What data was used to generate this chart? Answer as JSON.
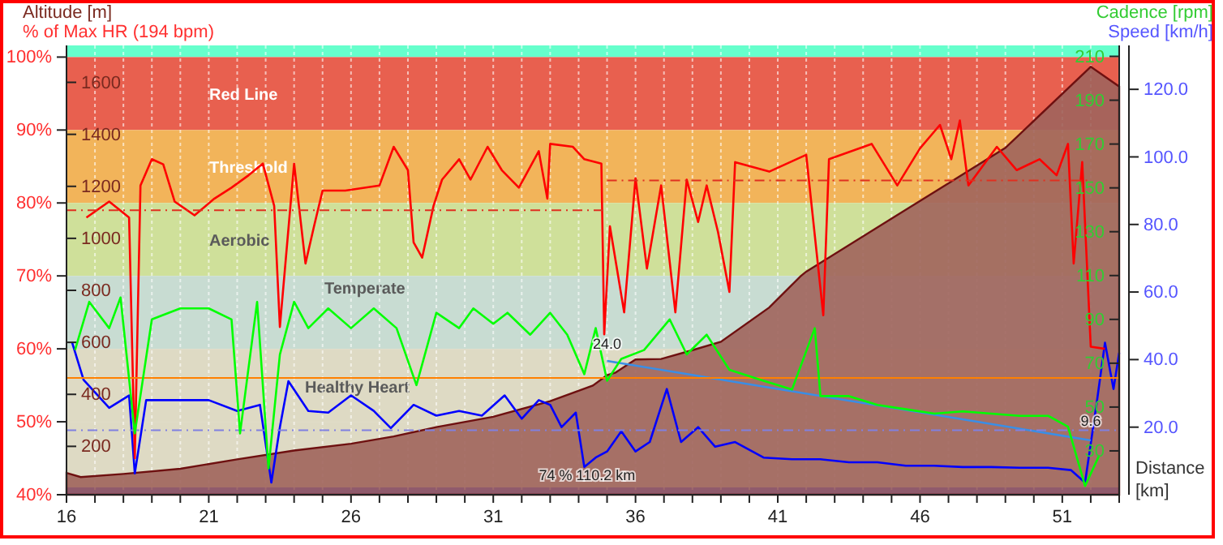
{
  "chart_data": [
    {
      "type": "line",
      "xlabel": "Distance [km]",
      "ylabel": "% of Max HR (194 bpm)",
      "y2label": "Speed [km/h]",
      "y3label": "Altitude [m]",
      "xlim": [
        16,
        53
      ],
      "xticks": [
        16,
        {
          "value": 17,
          "label": null
        },
        {
          "value": 18,
          "label": null
        },
        {
          "value": 19,
          "label": null
        },
        {
          "value": 20,
          "label": null
        },
        21,
        {
          "value": 22,
          "label": null
        },
        {
          "value": 23,
          "label": null
        },
        {
          "value": 24,
          "label": null
        },
        {
          "value": 25,
          "label": null
        },
        26,
        {
          "value": 27,
          "label": null
        },
        {
          "value": 28,
          "label": null
        },
        {
          "value": 29,
          "label": null
        },
        {
          "value": 30,
          "label": null
        },
        31,
        {
          "value": 32,
          "label": null
        },
        {
          "value": 33,
          "label": null
        },
        {
          "value": 34,
          "label": null
        },
        {
          "value": 35,
          "label": null
        },
        36,
        {
          "value": 37,
          "label": null
        },
        {
          "value": 38,
          "label": null
        },
        {
          "value": 39,
          "label": null
        },
        {
          "value": 40,
          "label": null
        },
        41,
        {
          "value": 42,
          "label": null
        },
        {
          "value": 43,
          "label": null
        },
        {
          "value": 44,
          "label": null
        },
        {
          "value": 45,
          "label": null
        },
        46,
        {
          "value": 47,
          "label": null
        },
        {
          "value": 48,
          "label": null
        },
        {
          "value": 49,
          "label": null
        },
        {
          "value": 50,
          "label": null
        },
        51,
        {
          "value": 52,
          "label": null
        },
        {
          "value": 53,
          "label": null
        }
      ],
      "ylim": [
        40,
        101.6
      ],
      "yticks": [
        {
          "value": 40,
          "label": "40%"
        },
        {
          "value": 50,
          "label": "50%"
        },
        {
          "value": 60,
          "label": "60%"
        },
        {
          "value": 70,
          "label": "70%"
        },
        {
          "value": 80,
          "label": "80%"
        },
        {
          "value": 90,
          "label": "90%"
        },
        {
          "value": 100,
          "label": "100%"
        }
      ],
      "y2lim": [
        0,
        133
      ],
      "y2ticks": [
        {
          "value": 20,
          "label": "20.0"
        },
        {
          "value": 40,
          "label": "40.0"
        },
        {
          "value": 60,
          "label": "60.0"
        },
        {
          "value": 80,
          "label": "80.0"
        },
        {
          "value": 100,
          "label": "100.0"
        },
        {
          "value": 120,
          "label": "120.0"
        }
      ],
      "y3lim": [
        14,
        1742
      ],
      "y3ticks": [
        200,
        400,
        600,
        800,
        1000,
        1200,
        1400,
        1600
      ],
      "grid": "x",
      "bands": [
        {
          "axis": "y",
          "from": 100,
          "to": 101.6,
          "label": null,
          "color": "#66ffcc"
        },
        {
          "axis": "y",
          "from": 90,
          "to": 100,
          "label": "Red Line",
          "color": "#e8604f"
        },
        {
          "axis": "y",
          "from": 80,
          "to": 90,
          "label": "Threshold",
          "color": "#f2b45a"
        },
        {
          "axis": "y",
          "from": 70,
          "to": 80,
          "label": "Aerobic",
          "color": "#cfe09a"
        },
        {
          "axis": "y",
          "from": 60,
          "to": 70,
          "label": "Temperate",
          "color": "#c8dcd2"
        },
        {
          "axis": "y",
          "from": 50,
          "to": 60,
          "label": "Healthy Heart",
          "color": "#dedac4"
        },
        {
          "axis": "y",
          "from": 40,
          "to": 50,
          "label": null,
          "color": "#dedac4"
        },
        {
          "axis": "y",
          "from": 40,
          "to": 41,
          "label": null,
          "color": "#0000ff"
        }
      ],
      "series": [
        {
          "type": "area",
          "axis": "y3",
          "color": "#a0645c",
          "x": [
            16,
            16.5,
            18,
            20,
            22,
            24,
            26,
            27.5,
            29,
            31,
            33,
            34.5,
            35,
            35.3,
            36,
            36.9,
            38,
            39,
            40.7,
            41.8,
            42,
            45,
            47,
            49,
            52,
            53
          ],
          "values": [
            98,
            82,
            94,
            114,
            150,
            184,
            210,
            238,
            274,
            314,
            374,
            434,
            474,
            484,
            534,
            536,
            570,
            602,
            734,
            854,
            872,
            1076,
            1212,
            1348,
            1660,
            1584
          ]
        },
        {
          "type": "line",
          "axis": "y2",
          "color": "#0000ff",
          "x": [
            16.2,
            16.6,
            17.5,
            18.2,
            18.4,
            18.8,
            20,
            21,
            22,
            22.8,
            23.2,
            23.5,
            23.8,
            24.5,
            25.2,
            26,
            26.8,
            27.4,
            28.2,
            29,
            29.8,
            30.6,
            31.4,
            32,
            32.6,
            33,
            33.4,
            33.9,
            34.2,
            34.6,
            35,
            35.5,
            36,
            36.5,
            37.1,
            37.6,
            38.2,
            38.8,
            39.5,
            40.5,
            41.5,
            42.5,
            43.5,
            44.5,
            45.5,
            46.5,
            47.5,
            48.5,
            49.5,
            50.5,
            51.3,
            51.8,
            52.2,
            52.5,
            52.8,
            53
          ],
          "values": [
            45,
            34,
            25.7,
            29.4,
            6.3,
            28,
            28,
            28,
            24.8,
            26.6,
            3.6,
            20,
            33.6,
            24.8,
            24.3,
            29.4,
            24.8,
            19.7,
            26.6,
            23.4,
            24.8,
            23.4,
            29.4,
            22.5,
            28,
            26.6,
            20,
            24.3,
            8.2,
            11,
            12.8,
            18.8,
            12.8,
            15.6,
            31.3,
            15.6,
            20,
            14.2,
            15.6,
            11,
            10.5,
            10.5,
            9.6,
            9.6,
            8.6,
            8.6,
            8.2,
            8.2,
            8,
            8,
            7.3,
            3.6,
            26.6,
            45,
            31.3,
            42
          ]
        },
        {
          "type": "line",
          "axis": "y",
          "color": "#ff0000",
          "x": [
            16.7,
            17.5,
            18.2,
            18.4,
            18.6,
            19,
            19.4,
            19.8,
            20.5,
            21.2,
            21.8,
            22.4,
            22.9,
            23.3,
            23.5,
            24,
            24.4,
            24.7,
            25,
            25.8,
            27,
            27.5,
            28,
            28.2,
            28.5,
            28.9,
            29.2,
            29.8,
            30.2,
            30.8,
            31.3,
            31.9,
            32.6,
            32.9,
            33,
            33.8,
            34.2,
            34.8,
            34.9,
            35.1,
            35.6,
            36,
            36.4,
            36.9,
            37.4,
            37.8,
            38.2,
            38.5,
            38.9,
            39.3,
            39.5,
            40.7,
            42,
            42.6,
            42.8,
            44.3,
            45.2,
            46,
            46.7,
            47.1,
            47.4,
            47.7,
            48.7,
            49.4,
            50.2,
            50.8,
            51.2,
            51.4,
            51.7,
            52,
            52.5
          ],
          "values": [
            78,
            80.2,
            78,
            45,
            82.4,
            86,
            85.3,
            80.2,
            78.3,
            80.6,
            82.1,
            83.8,
            85.4,
            79.6,
            63,
            85.4,
            71.7,
            76.8,
            81.7,
            81.7,
            82.4,
            87.7,
            84.5,
            74.6,
            72.5,
            79.6,
            83.2,
            86,
            83.2,
            87.7,
            84.5,
            82.1,
            87.1,
            80.6,
            88.1,
            87.7,
            86,
            85.4,
            62,
            76.8,
            65,
            83.4,
            71,
            82.4,
            65,
            83.2,
            77.4,
            82.4,
            76,
            67.8,
            85.6,
            84.3,
            86.6,
            64.6,
            86,
            88.1,
            82.4,
            87.5,
            90.7,
            86,
            91.3,
            82.4,
            87.7,
            84.5,
            86,
            83.8,
            88.1,
            71.7,
            85.6,
            60.3,
            60
          ]
        },
        {
          "type": "line",
          "axis": "y",
          "color": "#e03020",
          "line_style": "dashed",
          "x": [
            16,
            35
          ],
          "values": [
            79,
            79
          ]
        },
        {
          "type": "line",
          "axis": "y",
          "color": "#e03020",
          "line_style": "dashed",
          "x": [
            35,
            52
          ],
          "values": [
            83.1,
            83.1
          ]
        },
        {
          "type": "line",
          "axis": "y2",
          "color": "#3a8ee6",
          "x": [
            35,
            52
          ],
          "values": [
            39.6,
            16.1
          ]
        }
      ],
      "ref_lines": [
        {
          "axis": "y2",
          "value": 19.1,
          "label": null,
          "color": "#8080e0",
          "line_style": "dashed"
        },
        {
          "axis": "y2",
          "value": 34.6,
          "label": null,
          "color": "#ff8000",
          "line_style": "solid"
        }
      ],
      "annotations": [
        {
          "text": "24.0",
          "x": 35,
          "y": 60
        },
        {
          "text": "9.6",
          "x": 52,
          "y": 49.5
        },
        {
          "text": "74 % 110.2 km",
          "x": 34.3,
          "y": 42
        }
      ]
    },
    {
      "type": "line",
      "ylabel": "Cadence [rpm]",
      "xlim": [
        16,
        53
      ],
      "ylim": [
        10,
        215
      ],
      "yticks": [
        30,
        50,
        70,
        90,
        110,
        130,
        150,
        170,
        190,
        210
      ],
      "tick_labels": "y",
      "series": [
        {
          "color": "#00ff00",
          "x": [
            16.3,
            16.8,
            17.5,
            17.9,
            18.4,
            19,
            20,
            21,
            21.8,
            22.1,
            22.7,
            23.1,
            23.5,
            24,
            24.5,
            25.2,
            26,
            26.8,
            27.6,
            28.3,
            29,
            29.8,
            30.3,
            31,
            31.5,
            32.3,
            33,
            33.6,
            34.2,
            34.6,
            35,
            35.5,
            36.3,
            37.2,
            37.8,
            38.5,
            39.3,
            40.5,
            41.5,
            42.3,
            42.5,
            43.5,
            44.5,
            45.5,
            46.5,
            47.5,
            48.5,
            49.5,
            50.5,
            51.2,
            51.8,
            52.3
          ],
          "values": [
            76,
            98,
            86,
            100,
            38,
            90,
            95,
            95,
            90,
            38,
            98,
            22,
            74,
            98,
            86,
            95,
            86,
            95,
            86,
            60,
            93,
            86,
            95,
            88,
            93,
            83,
            93,
            83,
            65,
            86,
            62,
            72,
            76,
            90,
            74,
            83,
            67,
            62,
            58,
            86,
            55,
            55,
            51,
            49,
            47,
            48,
            47,
            46,
            46,
            41,
            14,
            28
          ]
        }
      ]
    }
  ]
}
